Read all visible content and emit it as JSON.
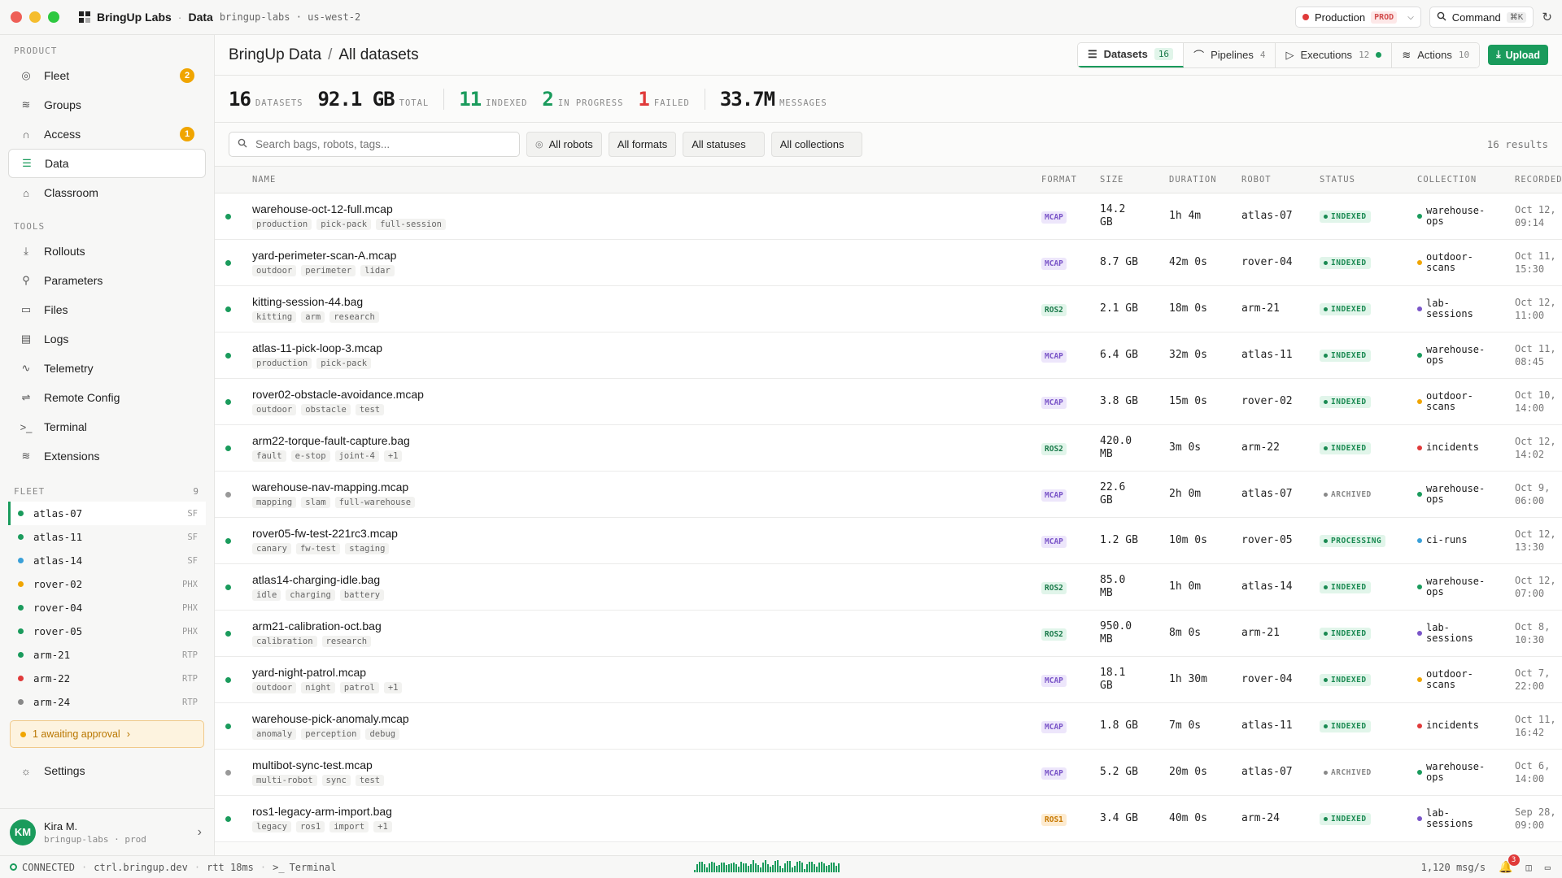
{
  "titlebar": {
    "brand": "BringUp Labs",
    "crumb": "Data",
    "crumb_sub": "bringup-labs · us-west-2",
    "env_label": "Production",
    "env_badge": "PROD",
    "command_label": "Command",
    "command_kbd": "⌘K"
  },
  "sidebar": {
    "product_label": "PRODUCT",
    "product_items": [
      {
        "label": "Fleet",
        "badge": "2"
      },
      {
        "label": "Groups",
        "badge": ""
      },
      {
        "label": "Access",
        "badge": "1"
      },
      {
        "label": "Data",
        "badge": ""
      },
      {
        "label": "Classroom",
        "badge": ""
      }
    ],
    "tools_label": "TOOLS",
    "tools_items": [
      {
        "label": "Rollouts"
      },
      {
        "label": "Parameters"
      },
      {
        "label": "Files"
      },
      {
        "label": "Logs"
      },
      {
        "label": "Telemetry"
      },
      {
        "label": "Remote Config"
      },
      {
        "label": "Terminal"
      },
      {
        "label": "Extensions"
      }
    ],
    "fleet_label": "FLEET",
    "fleet_count": "9",
    "fleet": [
      {
        "name": "atlas-07",
        "loc": "SF",
        "color": "#1a9b5c"
      },
      {
        "name": "atlas-11",
        "loc": "SF",
        "color": "#1a9b5c"
      },
      {
        "name": "atlas-14",
        "loc": "SF",
        "color": "#3aa0d8"
      },
      {
        "name": "rover-02",
        "loc": "PHX",
        "color": "#f0a500"
      },
      {
        "name": "rover-04",
        "loc": "PHX",
        "color": "#1a9b5c"
      },
      {
        "name": "rover-05",
        "loc": "PHX",
        "color": "#1a9b5c"
      },
      {
        "name": "arm-21",
        "loc": "RTP",
        "color": "#1a9b5c"
      },
      {
        "name": "arm-22",
        "loc": "RTP",
        "color": "#e03a3a"
      },
      {
        "name": "arm-24",
        "loc": "RTP",
        "color": "#888888"
      }
    ],
    "approval": "1 awaiting approval",
    "settings": "Settings",
    "user_initials": "KM",
    "user_name": "Kira M.",
    "user_sub": "bringup-labs · prod"
  },
  "header": {
    "title_root": "BringUp Data",
    "title_sep": "/",
    "title_page": "All datasets",
    "tabs": [
      {
        "label": "Datasets",
        "count": "16"
      },
      {
        "label": "Pipelines",
        "count": "4"
      },
      {
        "label": "Executions",
        "count": "12"
      },
      {
        "label": "Actions",
        "count": "10"
      }
    ],
    "upload": "Upload"
  },
  "stats": {
    "datasets_num": "16",
    "datasets_lbl": "DATASETS",
    "total_num": "92.1 GB",
    "total_lbl": "TOTAL",
    "indexed_num": "11",
    "indexed_lbl": "INDEXED",
    "progress_num": "2",
    "progress_lbl": "IN PROGRESS",
    "failed_num": "1",
    "failed_lbl": "FAILED",
    "messages_num": "33.7M",
    "messages_lbl": "MESSAGES"
  },
  "filters": {
    "search_placeholder": "Search bags, robots, tags...",
    "robots": "All robots",
    "formats": "All formats",
    "statuses": "All statuses",
    "collections": "All collections",
    "results": "16 results"
  },
  "table": {
    "headers": {
      "name": "NAME",
      "format": "FORMAT",
      "size": "SIZE",
      "duration": "DURATION",
      "robot": "ROBOT",
      "status": "STATUS",
      "collection": "COLLECTION",
      "recorded": "RECORDED"
    },
    "rows": [
      {
        "dot": "#1a9b5c",
        "name": "warehouse-oct-12-full.mcap",
        "tags": [
          "production",
          "pick-pack",
          "full-session"
        ],
        "format": "MCAP",
        "size": "14.2\nGB",
        "duration": "1h 4m",
        "robot": "atlas-07",
        "status": "INDEXED",
        "coll": "warehouse-\nops",
        "cdot": "#1a9b5c",
        "rec": "Oct 12,\n09:14"
      },
      {
        "dot": "#1a9b5c",
        "name": "yard-perimeter-scan-A.mcap",
        "tags": [
          "outdoor",
          "perimeter",
          "lidar"
        ],
        "format": "MCAP",
        "size": "8.7 GB",
        "duration": "42m 0s",
        "robot": "rover-04",
        "status": "INDEXED",
        "coll": "outdoor-\nscans",
        "cdot": "#f0a500",
        "rec": "Oct 11,\n15:30"
      },
      {
        "dot": "#1a9b5c",
        "name": "kitting-session-44.bag",
        "tags": [
          "kitting",
          "arm",
          "research"
        ],
        "format": "ROS2",
        "size": "2.1 GB",
        "duration": "18m 0s",
        "robot": "arm-21",
        "status": "INDEXED",
        "coll": "lab-\nsessions",
        "cdot": "#7a55c8",
        "rec": "Oct 12,\n11:00"
      },
      {
        "dot": "#1a9b5c",
        "name": "atlas-11-pick-loop-3.mcap",
        "tags": [
          "production",
          "pick-pack"
        ],
        "format": "MCAP",
        "size": "6.4 GB",
        "duration": "32m 0s",
        "robot": "atlas-11",
        "status": "INDEXED",
        "coll": "warehouse-\nops",
        "cdot": "#1a9b5c",
        "rec": "Oct 11,\n08:45"
      },
      {
        "dot": "#1a9b5c",
        "name": "rover02-obstacle-avoidance.mcap",
        "tags": [
          "outdoor",
          "obstacle",
          "test"
        ],
        "format": "MCAP",
        "size": "3.8 GB",
        "duration": "15m 0s",
        "robot": "rover-02",
        "status": "INDEXED",
        "coll": "outdoor-\nscans",
        "cdot": "#f0a500",
        "rec": "Oct 10,\n14:00"
      },
      {
        "dot": "#1a9b5c",
        "name": "arm22-torque-fault-capture.bag",
        "tags": [
          "fault",
          "e-stop",
          "joint-4",
          "+1"
        ],
        "format": "ROS2",
        "size": "420.0\nMB",
        "duration": "3m 0s",
        "robot": "arm-22",
        "status": "INDEXED",
        "coll": "incidents",
        "cdot": "#e03a3a",
        "rec": "Oct 12,\n14:02"
      },
      {
        "dot": "#999999",
        "name": "warehouse-nav-mapping.mcap",
        "tags": [
          "mapping",
          "slam",
          "full-warehouse"
        ],
        "format": "MCAP",
        "size": "22.6\nGB",
        "duration": "2h 0m",
        "robot": "atlas-07",
        "status": "ARCHIVED",
        "coll": "warehouse-\nops",
        "cdot": "#1a9b5c",
        "rec": "Oct 9,\n06:00"
      },
      {
        "dot": "#1a9b5c",
        "name": "rover05-fw-test-221rc3.mcap",
        "tags": [
          "canary",
          "fw-test",
          "staging"
        ],
        "format": "MCAP",
        "size": "1.2 GB",
        "duration": "10m 0s",
        "robot": "rover-05",
        "status": "PROCESSING",
        "coll": "ci-runs",
        "cdot": "#3aa0d8",
        "rec": "Oct 12,\n13:30"
      },
      {
        "dot": "#1a9b5c",
        "name": "atlas14-charging-idle.bag",
        "tags": [
          "idle",
          "charging",
          "battery"
        ],
        "format": "ROS2",
        "size": "85.0\nMB",
        "duration": "1h 0m",
        "robot": "atlas-14",
        "status": "INDEXED",
        "coll": "warehouse-\nops",
        "cdot": "#1a9b5c",
        "rec": "Oct 12,\n07:00"
      },
      {
        "dot": "#1a9b5c",
        "name": "arm21-calibration-oct.bag",
        "tags": [
          "calibration",
          "research"
        ],
        "format": "ROS2",
        "size": "950.0\nMB",
        "duration": "8m 0s",
        "robot": "arm-21",
        "status": "INDEXED",
        "coll": "lab-\nsessions",
        "cdot": "#7a55c8",
        "rec": "Oct 8,\n10:30"
      },
      {
        "dot": "#1a9b5c",
        "name": "yard-night-patrol.mcap",
        "tags": [
          "outdoor",
          "night",
          "patrol",
          "+1"
        ],
        "format": "MCAP",
        "size": "18.1\nGB",
        "duration": "1h 30m",
        "robot": "rover-04",
        "status": "INDEXED",
        "coll": "outdoor-\nscans",
        "cdot": "#f0a500",
        "rec": "Oct 7,\n22:00"
      },
      {
        "dot": "#1a9b5c",
        "name": "warehouse-pick-anomaly.mcap",
        "tags": [
          "anomaly",
          "perception",
          "debug"
        ],
        "format": "MCAP",
        "size": "1.8 GB",
        "duration": "7m 0s",
        "robot": "atlas-11",
        "status": "INDEXED",
        "coll": "incidents",
        "cdot": "#e03a3a",
        "rec": "Oct 11,\n16:42"
      },
      {
        "dot": "#999999",
        "name": "multibot-sync-test.mcap",
        "tags": [
          "multi-robot",
          "sync",
          "test"
        ],
        "format": "MCAP",
        "size": "5.2 GB",
        "duration": "20m 0s",
        "robot": "atlas-07",
        "status": "ARCHIVED",
        "coll": "warehouse-\nops",
        "cdot": "#1a9b5c",
        "rec": "Oct 6,\n14:00"
      },
      {
        "dot": "#1a9b5c",
        "name": "ros1-legacy-arm-import.bag",
        "tags": [
          "legacy",
          "ros1",
          "import",
          "+1"
        ],
        "format": "ROS1",
        "size": "3.4 GB",
        "duration": "40m 0s",
        "robot": "arm-24",
        "status": "INDEXED",
        "coll": "lab-\nsessions",
        "cdot": "#7a55c8",
        "rec": "Sep 28,\n09:00"
      }
    ]
  },
  "statusbar": {
    "connected": "CONNECTED",
    "host": "ctrl.bringup.dev",
    "rtt": "rtt 18ms",
    "terminal": "Terminal",
    "rate": "1,120 msg/s",
    "notif_count": "3"
  }
}
